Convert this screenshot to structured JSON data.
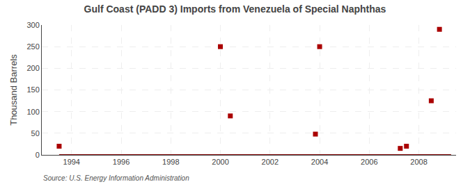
{
  "chart_data": {
    "type": "scatter",
    "title": "Gulf Coast (PADD 3) Imports from Venezuela of Special Naphthas",
    "ylabel": "Thousand Barrels",
    "annotations": [
      "Source: U.S. Energy Information Administration"
    ],
    "xlim": [
      1992.8,
      2009.5
    ],
    "ylim": [
      0,
      300
    ],
    "xticks": [
      1994,
      1996,
      1998,
      2000,
      2002,
      2004,
      2006,
      2008
    ],
    "yticks": [
      0,
      50,
      100,
      150,
      200,
      250,
      300
    ],
    "grid": true,
    "series": [
      {
        "type": "line",
        "color": "#8b1010",
        "line_style": "solid",
        "x": [
          1993.5,
          2009.3
        ],
        "values": [
          0,
          0
        ]
      },
      {
        "type": "scatter",
        "color": "#aa0000",
        "marker": "square",
        "x": [
          1993.5,
          2000.0,
          2000.4,
          2003.83,
          2004.0,
          2007.25,
          2007.5,
          2008.5,
          2008.83
        ],
        "values": [
          20,
          250,
          90,
          48,
          250,
          15,
          20,
          125,
          290
        ]
      }
    ]
  }
}
